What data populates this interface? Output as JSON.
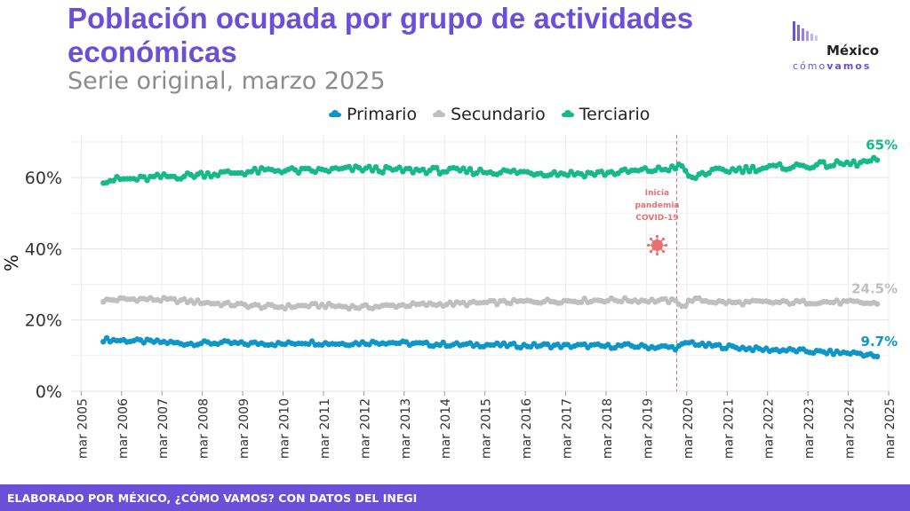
{
  "header": {
    "title": "Población ocupada por grupo de actividades económicas",
    "subtitle": "Serie original, marzo 2025"
  },
  "logo": {
    "name": "México",
    "tag_1": "cómo",
    "tag_2": "vamos"
  },
  "footer": {
    "text": "ELABORADO POR MÉXICO, ¿CÓMO VAMOS? CON DATOS DEL INEGI"
  },
  "colors": {
    "accent": "#6a4fd8",
    "primario": "#0e96c8",
    "secundario": "#bfbfbf",
    "terciario": "#16b98a",
    "pandemic": "#e87070"
  },
  "chart_data": {
    "type": "line",
    "ylabel": "%",
    "y_ticks": [
      "0%",
      "20%",
      "40%",
      "60%"
    ],
    "ylim": [
      0,
      72
    ],
    "x_ticks": [
      "mar 2005",
      "mar 2006",
      "mar 2007",
      "mar 2008",
      "mar 2009",
      "mar 2010",
      "mar 2011",
      "mar 2012",
      "mar 2013",
      "mar 2014",
      "mar 2015",
      "mar 2016",
      "mar 2017",
      "mar 2018",
      "mar 2019",
      "mar 2020",
      "mar 2021",
      "mar 2022",
      "mar 2023",
      "mar 2024",
      "mar 2025"
    ],
    "xlim": [
      2005.0,
      2025.25
    ],
    "grid": true,
    "legend_position": "top",
    "x": [
      2005.8,
      2006.25,
      2006.75,
      2007.25,
      2007.75,
      2008.25,
      2008.75,
      2009.25,
      2009.75,
      2010.25,
      2010.75,
      2011.25,
      2011.75,
      2012.25,
      2012.75,
      2013.25,
      2013.75,
      2014.25,
      2014.75,
      2015.25,
      2015.75,
      2016.25,
      2016.75,
      2017.25,
      2017.75,
      2018.25,
      2018.75,
      2019.25,
      2019.75,
      2020.0,
      2020.2,
      2020.35,
      2020.6,
      2021.0,
      2021.5,
      2022.0,
      2022.5,
      2023.0,
      2023.5,
      2024.0,
      2024.5,
      2025.0
    ],
    "series": [
      {
        "name": "Primario",
        "values": [
          14.5,
          14.3,
          14.0,
          13.8,
          13.4,
          13.5,
          13.6,
          13.3,
          13.5,
          13.2,
          13.8,
          13.5,
          13.4,
          13.6,
          13.8,
          13.5,
          13.2,
          13.2,
          13.0,
          13.1,
          12.9,
          12.8,
          12.9,
          12.7,
          12.8,
          12.6,
          12.8,
          12.5,
          12.4,
          12.2,
          13.2,
          13.8,
          12.9,
          12.7,
          12.3,
          11.8,
          11.6,
          11.4,
          11.0,
          10.8,
          10.7,
          9.7
        ]
      },
      {
        "name": "Secundario",
        "values": [
          25.5,
          25.8,
          25.9,
          25.7,
          25.4,
          25.0,
          24.5,
          24.2,
          23.8,
          23.7,
          24.0,
          24.1,
          23.8,
          23.6,
          23.9,
          24.2,
          24.3,
          24.5,
          24.6,
          24.8,
          25.0,
          25.2,
          25.3,
          25.4,
          25.5,
          25.6,
          25.6,
          25.5,
          25.4,
          25.2,
          23.8,
          25.8,
          25.6,
          25.1,
          24.8,
          25.0,
          24.9,
          25.0,
          25.1,
          25.0,
          24.9,
          24.5
        ]
      },
      {
        "name": "Terciario",
        "values": [
          59.3,
          59.5,
          59.6,
          60.2,
          60.4,
          61.0,
          61.2,
          61.5,
          61.9,
          62.1,
          61.8,
          62.0,
          62.3,
          62.5,
          62.2,
          62.0,
          62.1,
          61.9,
          61.8,
          61.7,
          61.6,
          61.5,
          61.3,
          61.2,
          61.1,
          61.3,
          61.6,
          62.0,
          62.4,
          63.2,
          62.5,
          59.2,
          61.2,
          61.8,
          62.3,
          62.6,
          62.9,
          63.2,
          63.5,
          63.8,
          64.0,
          65.0
        ]
      }
    ],
    "end_labels": [
      "9.7%",
      "24.5%",
      "65%"
    ],
    "annotation": {
      "x": 2020.0,
      "text_lines": [
        "Inicia",
        "pandemia",
        "COVID-19"
      ],
      "icon": "virus-icon"
    }
  }
}
